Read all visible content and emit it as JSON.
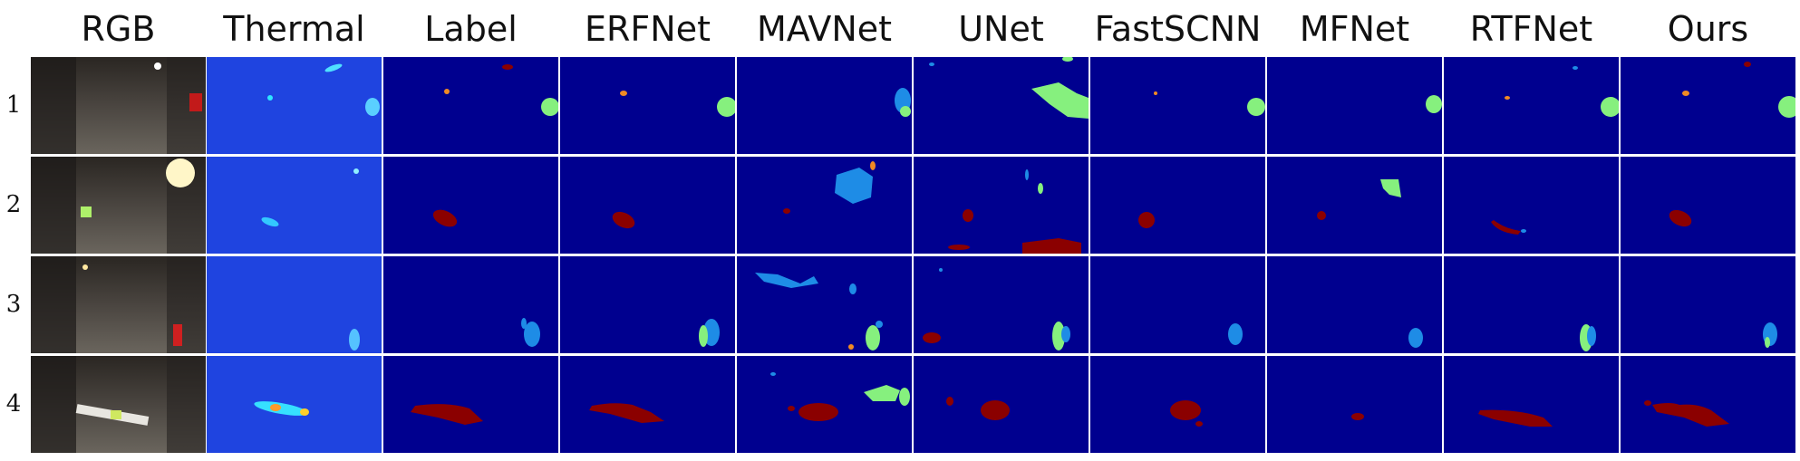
{
  "figure": {
    "columns": [
      "RGB",
      "Thermal",
      "Label",
      "ERFNet",
      "MAVNet",
      "UNet",
      "FastSCNN",
      "MFNet",
      "RTFNet",
      "Ours"
    ],
    "rows": [
      "1",
      "2",
      "3",
      "4"
    ]
  },
  "colors": {
    "background_class": "#00008f",
    "class_red": "#8b0000",
    "class_orange": "#f08a24",
    "class_blue": "#1e8ce6",
    "class_green": "#86f07e",
    "separator": "#ffffff"
  },
  "scene_classes": {
    "1": [
      "orange-blob",
      "green-blob-right",
      "red-top"
    ],
    "2": [
      "red-blob-left",
      "blue-cloud"
    ],
    "3": [
      "blue-blob-right",
      "green-blob-right"
    ],
    "4": [
      "red-elongated-blob",
      "green-scatter"
    ]
  }
}
